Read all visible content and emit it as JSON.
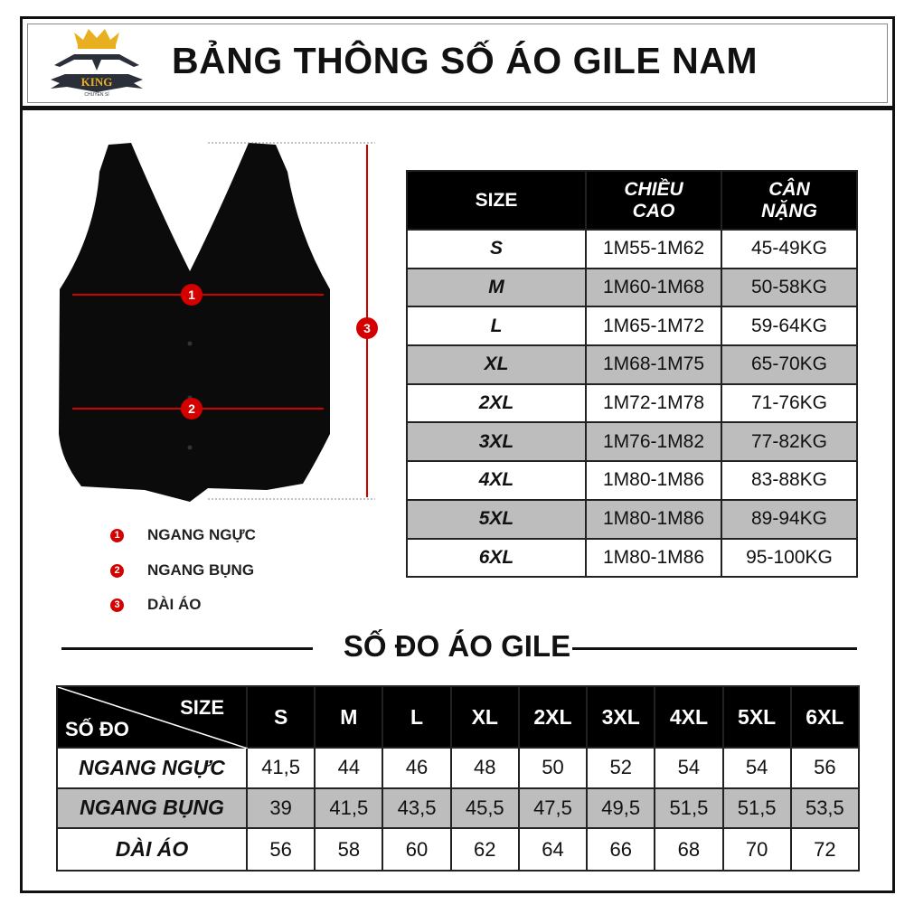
{
  "header": {
    "title": "BẢNG THÔNG SỐ ÁO GILE NAM",
    "logo_text": "KING",
    "logo_subtext": "CHUYÊN SỈ"
  },
  "legend": [
    {
      "num": "1",
      "label": "NGANG NGỰC"
    },
    {
      "num": "2",
      "label": "NGANG BỤNG"
    },
    {
      "num": "3",
      "label": "DÀI ÁO"
    }
  ],
  "size_table": {
    "headers": [
      "SIZE",
      "CHIỀU CAO",
      "CÂN NẶNG"
    ],
    "rows": [
      {
        "size": "S",
        "height": "1M55-1M62",
        "weight": "45-49KG"
      },
      {
        "size": "M",
        "height": "1M60-1M68",
        "weight": "50-58KG"
      },
      {
        "size": "L",
        "height": "1M65-1M72",
        "weight": "59-64KG"
      },
      {
        "size": "XL",
        "height": "1M68-1M75",
        "weight": "65-70KG"
      },
      {
        "size": "2XL",
        "height": "1M72-1M78",
        "weight": "71-76KG"
      },
      {
        "size": "3XL",
        "height": "1M76-1M82",
        "weight": "77-82KG"
      },
      {
        "size": "4XL",
        "height": "1M80-1M86",
        "weight": "83-88KG"
      },
      {
        "size": "5XL",
        "height": "1M80-1M86",
        "weight": "89-94KG"
      },
      {
        "size": "6XL",
        "height": "1M80-1M86",
        "weight": "95-100KG"
      }
    ]
  },
  "measure_section": {
    "title": "SỐ ĐO ÁO GILE",
    "corner_top": "SIZE",
    "corner_bottom": "SỐ ĐO",
    "sizes": [
      "S",
      "M",
      "L",
      "XL",
      "2XL",
      "3XL",
      "4XL",
      "5XL",
      "6XL"
    ],
    "rows": [
      {
        "label": "NGANG NGỰC",
        "values": [
          "41,5",
          "44",
          "46",
          "48",
          "50",
          "52",
          "54",
          "54",
          "56"
        ]
      },
      {
        "label": "NGANG BỤNG",
        "values": [
          "39",
          "41,5",
          "43,5",
          "45,5",
          "47,5",
          "49,5",
          "51,5",
          "51,5",
          "53,5"
        ]
      },
      {
        "label": "DÀI ÁO",
        "values": [
          "56",
          "58",
          "60",
          "62",
          "64",
          "66",
          "68",
          "70",
          "72"
        ]
      }
    ]
  },
  "colors": {
    "marker": "#d40000",
    "row_alt": "#bdbdbd",
    "header_bg": "#000000"
  }
}
